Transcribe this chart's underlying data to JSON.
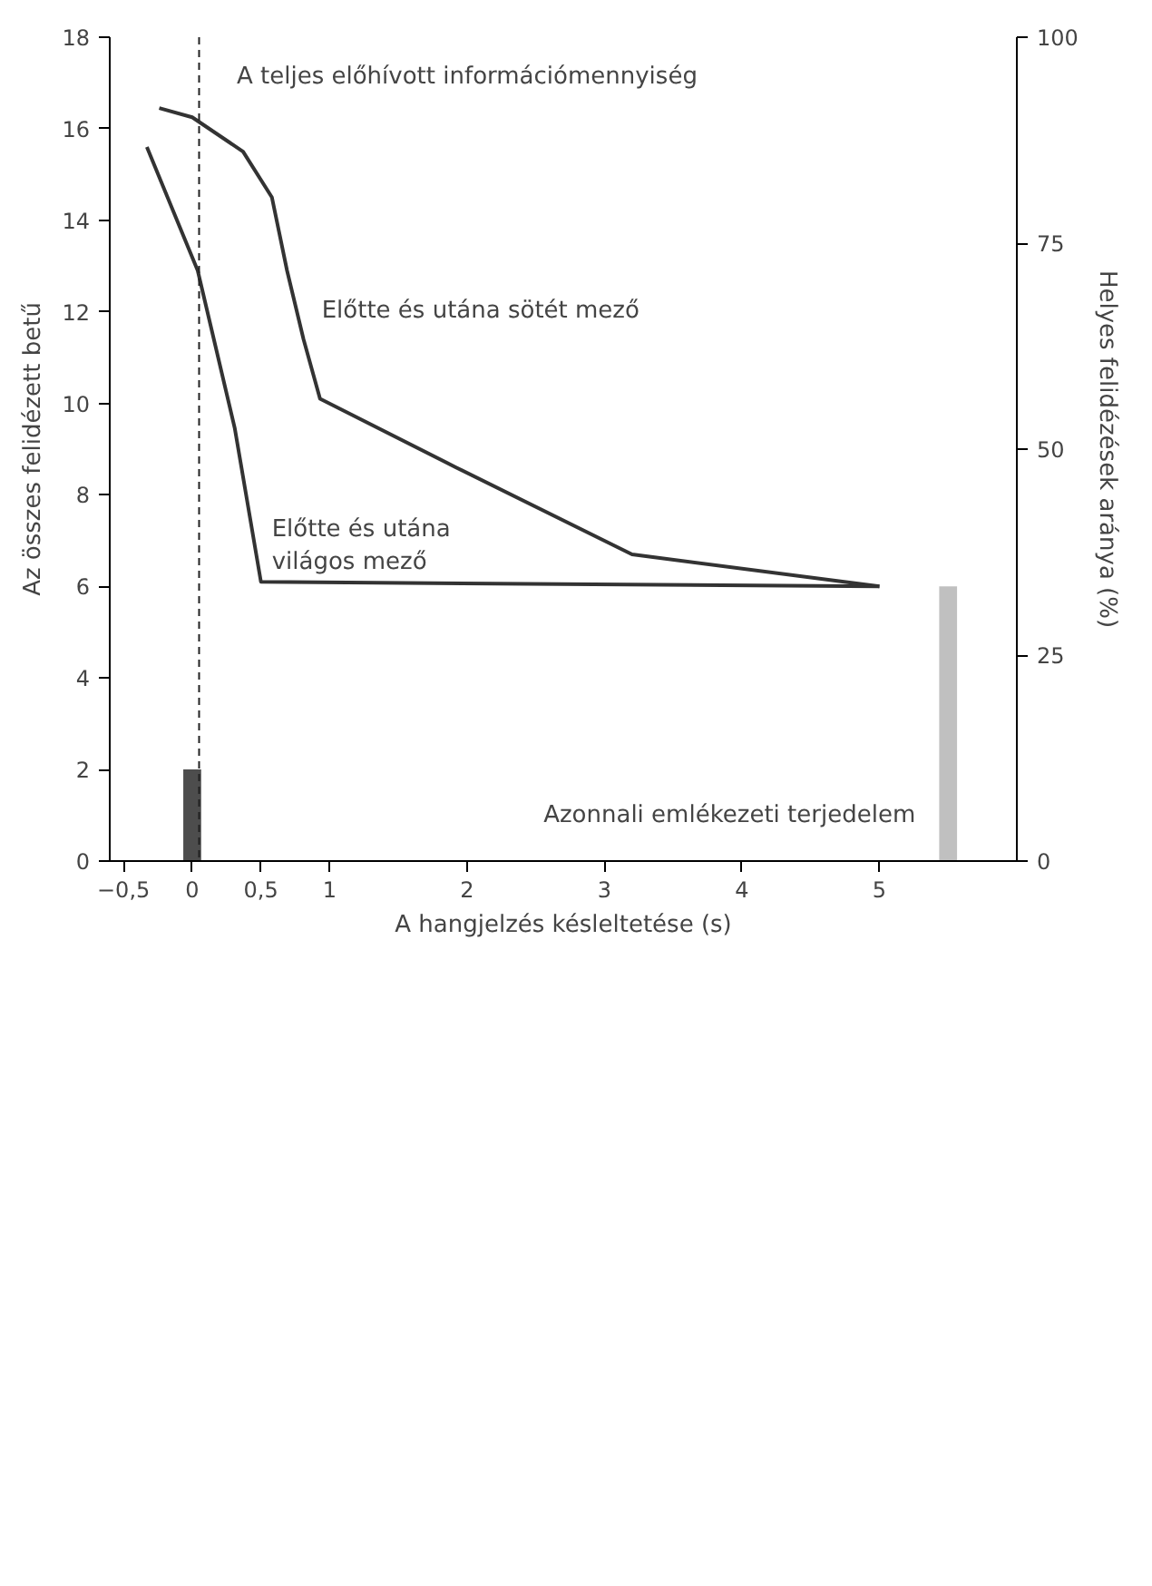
{
  "chart_data": {
    "type": "line",
    "xlabel": "A hangjelzés késleltetése (s)",
    "ylabel": "Az összes felidézett betű",
    "y2label": "Helyes felidézések aránya (%)",
    "annotations": [
      "A teljes előhívott információmennyiség"
    ],
    "series": [
      {
        "name": "Előtte és utána sötét mező",
        "color": "#333333",
        "x": [
          -0.24,
          0.0,
          0.37,
          0.58,
          0.69,
          0.81,
          0.93,
          1.92,
          3.2,
          5.0
        ],
        "values": [
          16.45,
          16.25,
          15.5,
          14.5,
          12.9,
          11.4,
          10.1,
          8.6,
          6.7,
          6.0
        ]
      },
      {
        "name": "Előtte és utána világos mező",
        "color": "#333333",
        "x": [
          -0.33,
          0.04,
          0.31,
          0.5,
          5.0
        ],
        "values": [
          15.6,
          12.9,
          9.45,
          6.1,
          6.0
        ]
      },
      {
        "type": "bar",
        "color": "#4d4d4d",
        "x": [
          0.0
        ],
        "values": [
          2.0
        ]
      },
      {
        "type": "bar",
        "name": "Azonnali emlékezeti terjedelem",
        "color": "#c0c0c0",
        "x": [
          5.5
        ],
        "values": [
          6.0
        ]
      }
    ],
    "ref_lines": [
      {
        "axis": "x",
        "value": 0.05,
        "line_style": "dashed",
        "color": "#222222"
      }
    ],
    "xlim": [
      -0.6,
      6.0
    ],
    "ylim": [
      0,
      18
    ],
    "y2lim": [
      0,
      100
    ],
    "xticks": [
      {
        "value": -0.5,
        "label": "−0,5"
      },
      0,
      {
        "value": 0.5,
        "label": "0,5"
      },
      1,
      2,
      3,
      4,
      5
    ],
    "yticks": [
      0,
      2,
      4,
      6,
      8,
      10,
      12,
      14,
      16,
      18
    ],
    "y2ticks": [
      0,
      25,
      50,
      75,
      100
    ],
    "grid": false,
    "line_style": "solid",
    "marker": "none"
  }
}
